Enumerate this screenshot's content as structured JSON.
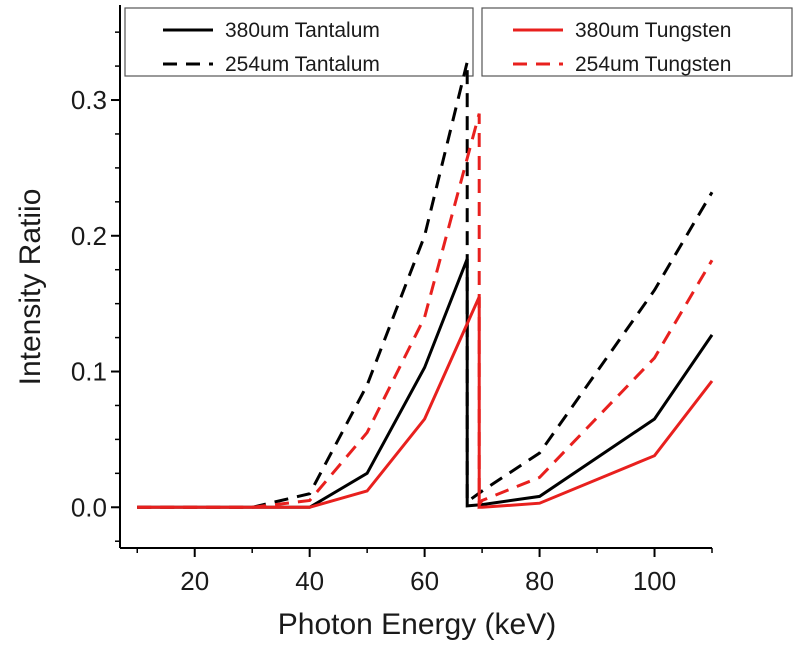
{
  "chart_data": {
    "type": "line",
    "xlabel": "Photon Energy (keV)",
    "ylabel": "Intensity Ratiio",
    "xlim": [
      7,
      110
    ],
    "ylim": [
      -0.03,
      0.37
    ],
    "xticks": [
      20,
      40,
      60,
      80,
      100
    ],
    "xtick_labels": [
      "20",
      "40",
      "60",
      "80",
      "100"
    ],
    "yticks": [
      0.0,
      0.1,
      0.2,
      0.3
    ],
    "ytick_labels": [
      "0.0",
      "0.1",
      "0.2",
      "0.3"
    ],
    "grid": false,
    "legend_placement": "top, two boxes",
    "series": [
      {
        "name": "380um Tantalum",
        "color": "#000000",
        "dash": "solid",
        "x": [
          10,
          30,
          40,
          50,
          60,
          67.4,
          67.4,
          70,
          80,
          100,
          110
        ],
        "y": [
          0.0,
          0.0,
          0.0,
          0.025,
          0.103,
          0.183,
          0.001,
          0.002,
          0.008,
          0.065,
          0.127
        ]
      },
      {
        "name": "254um Tantalum",
        "color": "#000000",
        "dash": "dashed",
        "x": [
          10,
          30,
          40,
          50,
          60,
          67.4,
          67.4,
          70,
          80,
          100,
          110
        ],
        "y": [
          0.0,
          0.0,
          0.01,
          0.09,
          0.2,
          0.328,
          0.004,
          0.012,
          0.04,
          0.16,
          0.232
        ]
      },
      {
        "name": "380um Tungsten",
        "color": "#e8201e",
        "dash": "solid",
        "x": [
          10,
          30,
          40,
          50,
          60,
          69.5,
          69.5,
          70,
          80,
          100,
          110
        ],
        "y": [
          0.0,
          0.0,
          0.0,
          0.012,
          0.065,
          0.155,
          0.0,
          0.0,
          0.003,
          0.038,
          0.093
        ]
      },
      {
        "name": "254um Tungsten",
        "color": "#e8201e",
        "dash": "dashed",
        "x": [
          10,
          30,
          40,
          50,
          60,
          69.5,
          69.5,
          70,
          80,
          100,
          110
        ],
        "y": [
          0.0,
          0.0,
          0.005,
          0.055,
          0.14,
          0.29,
          0.002,
          0.005,
          0.022,
          0.11,
          0.182
        ]
      }
    ],
    "legends": [
      {
        "entries": [
          "380um Tantalum",
          "254um Tantalum"
        ]
      },
      {
        "entries": [
          "380um Tungsten",
          "254um Tungsten"
        ]
      }
    ]
  }
}
